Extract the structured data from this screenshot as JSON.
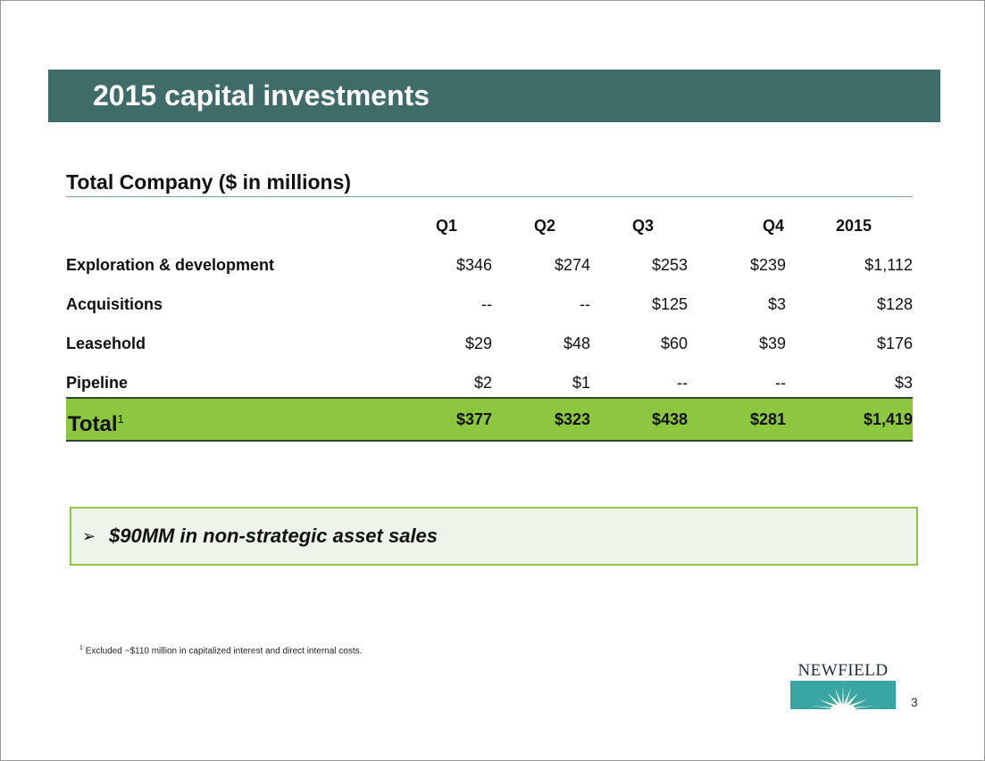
{
  "slide": {
    "title": "2015 capital investments",
    "section_title": "Total Company ($ in millions)",
    "table": {
      "headers": [
        "Q1",
        "Q2",
        "Q3",
        "Q4",
        "2015"
      ],
      "rows": [
        {
          "label": "Exploration & development",
          "values": [
            "$346",
            "$274",
            "$253",
            "$239",
            "$1,112"
          ]
        },
        {
          "label": "Acquisitions",
          "values": [
            "--",
            "--",
            "$125",
            "$3",
            "$128"
          ]
        },
        {
          "label": "Leasehold",
          "values": [
            "$29",
            "$48",
            "$60",
            "$39",
            "$176"
          ]
        },
        {
          "label": "Pipeline",
          "values": [
            "$2",
            "$1",
            "--",
            "--",
            "$3"
          ]
        }
      ],
      "total": {
        "label": "Total",
        "footnote_mark": "1",
        "values": [
          "$377",
          "$323",
          "$438",
          "$281",
          "$1,419"
        ]
      }
    },
    "callout": {
      "bullet": "➢",
      "text": "$90MM in non-strategic asset sales"
    },
    "footnote": {
      "mark": "1",
      "text": "Excluded  ~$110 million in capitalized interest and direct internal costs."
    },
    "logo": {
      "text": "NEWFIELD",
      "box_color": "#3aa6a3"
    },
    "page_number": "3",
    "colors": {
      "title_bar": "#3f6b69",
      "total_row": "#8dc63f",
      "callout_bg": "#edf4ea"
    }
  }
}
